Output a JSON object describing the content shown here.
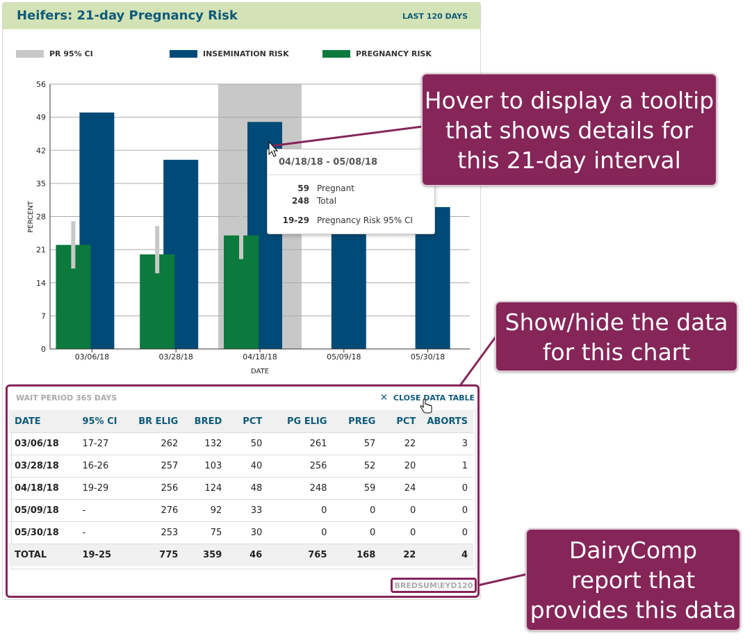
{
  "card": {
    "title": "Heifers: 21-day Pregnancy Risk",
    "range": "LAST 120 DAYS"
  },
  "legend": [
    {
      "label": "PR 95% CI",
      "color": "#c8c8c8"
    },
    {
      "label": "INSEMINATION RISK",
      "color": "#004a78"
    },
    {
      "label": "PREGNANCY RISK",
      "color": "#0c7a3c"
    }
  ],
  "chart_data": {
    "type": "bar",
    "xlabel": "DATE",
    "ylabel": "PERCENT",
    "ylim": [
      0,
      56
    ],
    "yticks": [
      0,
      7,
      14,
      21,
      28,
      35,
      42,
      49,
      56
    ],
    "categories": [
      "03/06/18",
      "03/28/18",
      "04/18/18",
      "05/09/18",
      "05/30/18"
    ],
    "series": [
      {
        "name": "INSEMINATION RISK",
        "values": [
          50,
          40,
          48,
          33,
          30
        ],
        "color": "#004a78"
      },
      {
        "name": "PREGNANCY RISK",
        "values": [
          22,
          20,
          24,
          0,
          0
        ],
        "color": "#0c7a3c"
      }
    ],
    "ci": [
      [
        17,
        27
      ],
      [
        16,
        26
      ],
      [
        19,
        29
      ],
      null,
      null
    ],
    "highlight_index": 2,
    "highlight_color": "#c8c8c8",
    "grid": true
  },
  "tooltip": {
    "title": "04/18/18 - 05/08/18",
    "rows": [
      {
        "value": "59",
        "label": "Pregnant"
      },
      {
        "value": "248",
        "label": "Total"
      },
      {
        "value": "19-29",
        "label": "Pregnancy Risk 95% CI"
      }
    ]
  },
  "callouts": {
    "tooltip": [
      "Hover to display a tooltip",
      "that shows details for",
      "this 21-day interval"
    ],
    "table": [
      "Show/hide the data",
      "for this chart"
    ],
    "report": [
      "DairyComp",
      "report that",
      "provides this data"
    ]
  },
  "data_table": {
    "wait_period": "WAIT PERIOD 365 DAYS",
    "close_label": "CLOSE DATA TABLE",
    "columns": [
      "DATE",
      "95% CI",
      "BR ELIG",
      "BRED",
      "PCT",
      "PG ELIG",
      "PREG",
      "PCT",
      "ABORTS"
    ],
    "rows": [
      [
        "03/06/18",
        "17-27",
        "262",
        "132",
        "50",
        "261",
        "57",
        "22",
        "3"
      ],
      [
        "03/28/18",
        "16-26",
        "257",
        "103",
        "40",
        "256",
        "52",
        "20",
        "1"
      ],
      [
        "04/18/18",
        "19-29",
        "256",
        "124",
        "48",
        "248",
        "59",
        "24",
        "0"
      ],
      [
        "05/09/18",
        "-",
        "276",
        "92",
        "33",
        "0",
        "0",
        "0",
        "0"
      ],
      [
        "05/30/18",
        "-",
        "253",
        "75",
        "30",
        "0",
        "0",
        "0",
        "0"
      ]
    ],
    "total": [
      "TOTAL",
      "19-25",
      "775",
      "359",
      "46",
      "765",
      "168",
      "22",
      "4"
    ],
    "report_code": "BREDSUM\\EYD120"
  },
  "colors": {
    "accent": "#852558",
    "header_bg": "#d3e3b5",
    "title": "#0e5a7a"
  }
}
